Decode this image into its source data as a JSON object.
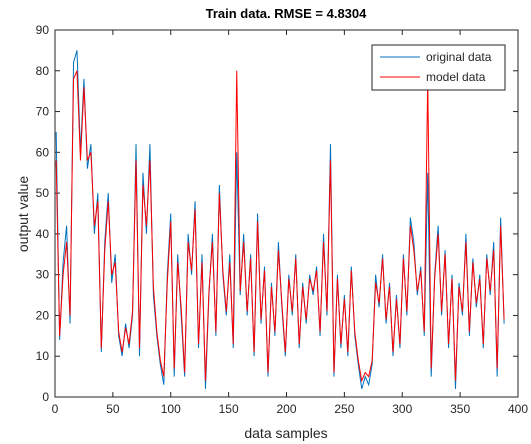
{
  "chart_data": {
    "type": "line",
    "title": "Train data. RMSE = 4.8304",
    "x_label": "data samples",
    "y_label": "output value",
    "xlim": [
      0,
      400
    ],
    "xticks": [
      0,
      50,
      100,
      150,
      200,
      250,
      300,
      350,
      400
    ],
    "ylim": [
      0,
      90
    ],
    "yticks": [
      0,
      10,
      20,
      30,
      40,
      50,
      60,
      70,
      80,
      90
    ],
    "legend": "top-right",
    "x": [
      1,
      4,
      7,
      10,
      13,
      16,
      19,
      22,
      25,
      28,
      31,
      34,
      37,
      40,
      43,
      46,
      49,
      52,
      55,
      58,
      61,
      64,
      67,
      70,
      73,
      76,
      79,
      82,
      85,
      88,
      91,
      94,
      97,
      100,
      103,
      106,
      109,
      112,
      115,
      118,
      121,
      124,
      127,
      130,
      133,
      136,
      139,
      142,
      145,
      148,
      151,
      154,
      157,
      160,
      163,
      166,
      169,
      172,
      175,
      178,
      181,
      184,
      187,
      190,
      193,
      196,
      199,
      202,
      205,
      208,
      211,
      214,
      217,
      220,
      223,
      226,
      229,
      232,
      235,
      238,
      241,
      244,
      247,
      250,
      253,
      256,
      259,
      262,
      265,
      268,
      271,
      274,
      277,
      280,
      283,
      286,
      289,
      292,
      295,
      298,
      301,
      304,
      307,
      310,
      313,
      316,
      319,
      322,
      325,
      328,
      331,
      334,
      337,
      340,
      343,
      346,
      349,
      352,
      355,
      358,
      361,
      364,
      367,
      370,
      373,
      376,
      379,
      382,
      385,
      388
    ],
    "series": [
      {
        "name": "original data",
        "color": "#0072BD",
        "values": [
          65,
          14,
          33,
          42,
          18,
          82,
          85,
          60,
          78,
          56,
          62,
          40,
          50,
          11,
          38,
          50,
          28,
          35,
          15,
          10,
          18,
          12,
          20,
          62,
          10,
          55,
          40,
          62,
          25,
          15,
          8,
          3,
          30,
          45,
          5,
          35,
          20,
          5,
          40,
          30,
          48,
          12,
          35,
          2,
          25,
          40,
          15,
          52,
          30,
          20,
          35,
          12,
          60,
          25,
          40,
          20,
          35,
          10,
          45,
          18,
          32,
          5,
          28,
          15,
          38,
          22,
          10,
          30,
          20,
          35,
          12,
          28,
          18,
          30,
          25,
          32,
          15,
          40,
          20,
          62,
          5,
          30,
          12,
          25,
          10,
          32,
          15,
          8,
          2,
          5,
          3,
          8,
          30,
          22,
          35,
          18,
          28,
          10,
          25,
          12,
          35,
          20,
          44,
          38,
          25,
          32,
          15,
          55,
          5,
          30,
          42,
          20,
          36,
          12,
          30,
          2,
          28,
          20,
          40,
          15,
          34,
          22,
          30,
          12,
          35,
          25,
          38,
          5,
          44,
          18
        ]
      },
      {
        "name": "model data",
        "color": "#FF0000",
        "values": [
          58,
          15,
          30,
          38,
          20,
          78,
          80,
          58,
          76,
          58,
          60,
          42,
          48,
          12,
          36,
          48,
          30,
          33,
          16,
          11,
          17,
          13,
          21,
          58,
          12,
          52,
          42,
          58,
          27,
          16,
          9,
          5,
          28,
          43,
          7,
          33,
          22,
          6,
          38,
          31,
          46,
          13,
          33,
          4,
          26,
          38,
          16,
          50,
          31,
          21,
          33,
          13,
          80,
          26,
          38,
          21,
          34,
          11,
          43,
          19,
          31,
          6,
          27,
          16,
          36,
          23,
          11,
          29,
          21,
          34,
          13,
          27,
          19,
          29,
          26,
          31,
          16,
          38,
          21,
          58,
          6,
          29,
          13,
          24,
          11,
          31,
          16,
          9,
          4,
          6,
          5,
          9,
          28,
          23,
          34,
          19,
          27,
          11,
          24,
          13,
          34,
          21,
          42,
          36,
          26,
          31,
          16,
          78,
          7,
          29,
          40,
          21,
          35,
          13,
          29,
          4,
          27,
          21,
          38,
          16,
          33,
          23,
          29,
          13,
          34,
          26,
          36,
          7,
          42,
          19
        ]
      }
    ]
  }
}
